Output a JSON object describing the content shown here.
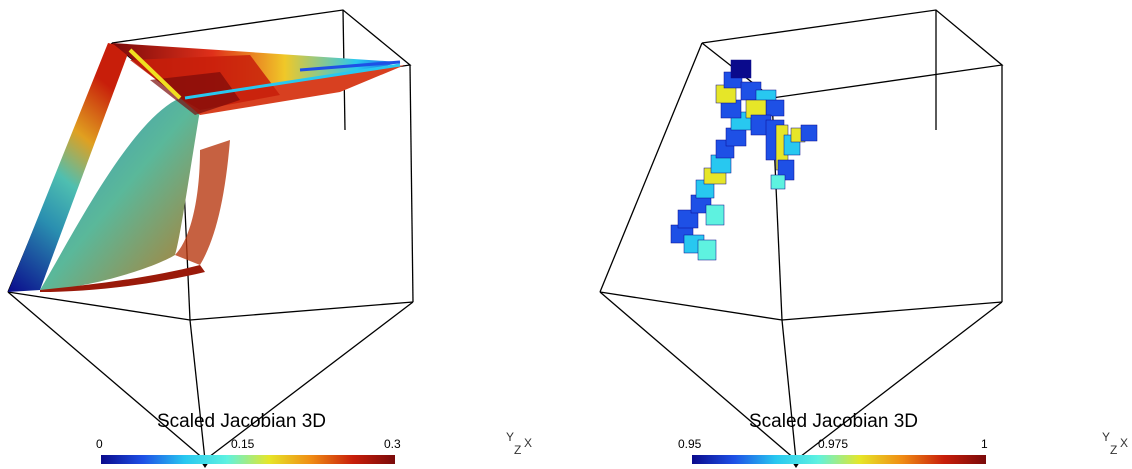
{
  "panels": [
    {
      "colorbar": {
        "title": "Scaled Jacobian 3D",
        "ticks": [
          "0",
          "0.15",
          "0.3"
        ],
        "min": 0,
        "max": 0.3,
        "colors": [
          "#0a0a8c",
          "#1e50e6",
          "#28c8f0",
          "#5ef2e0",
          "#e6e628",
          "#f08c14",
          "#c81e0a",
          "#7a0a0a"
        ]
      },
      "axes_triad": {
        "y": "Y",
        "z": "Z",
        "x": "X"
      }
    },
    {
      "colorbar": {
        "title": "Scaled Jacobian 3D",
        "ticks": [
          "0.95",
          "0.975",
          "1"
        ],
        "min": 0.95,
        "max": 1,
        "colors": [
          "#0a0a8c",
          "#1e50e6",
          "#28c8f0",
          "#5ef2e0",
          "#e6e628",
          "#f08c14",
          "#c81e0a",
          "#7a0a0a"
        ]
      },
      "axes_triad": {
        "y": "Y",
        "z": "Z",
        "x": "X"
      }
    }
  ]
}
